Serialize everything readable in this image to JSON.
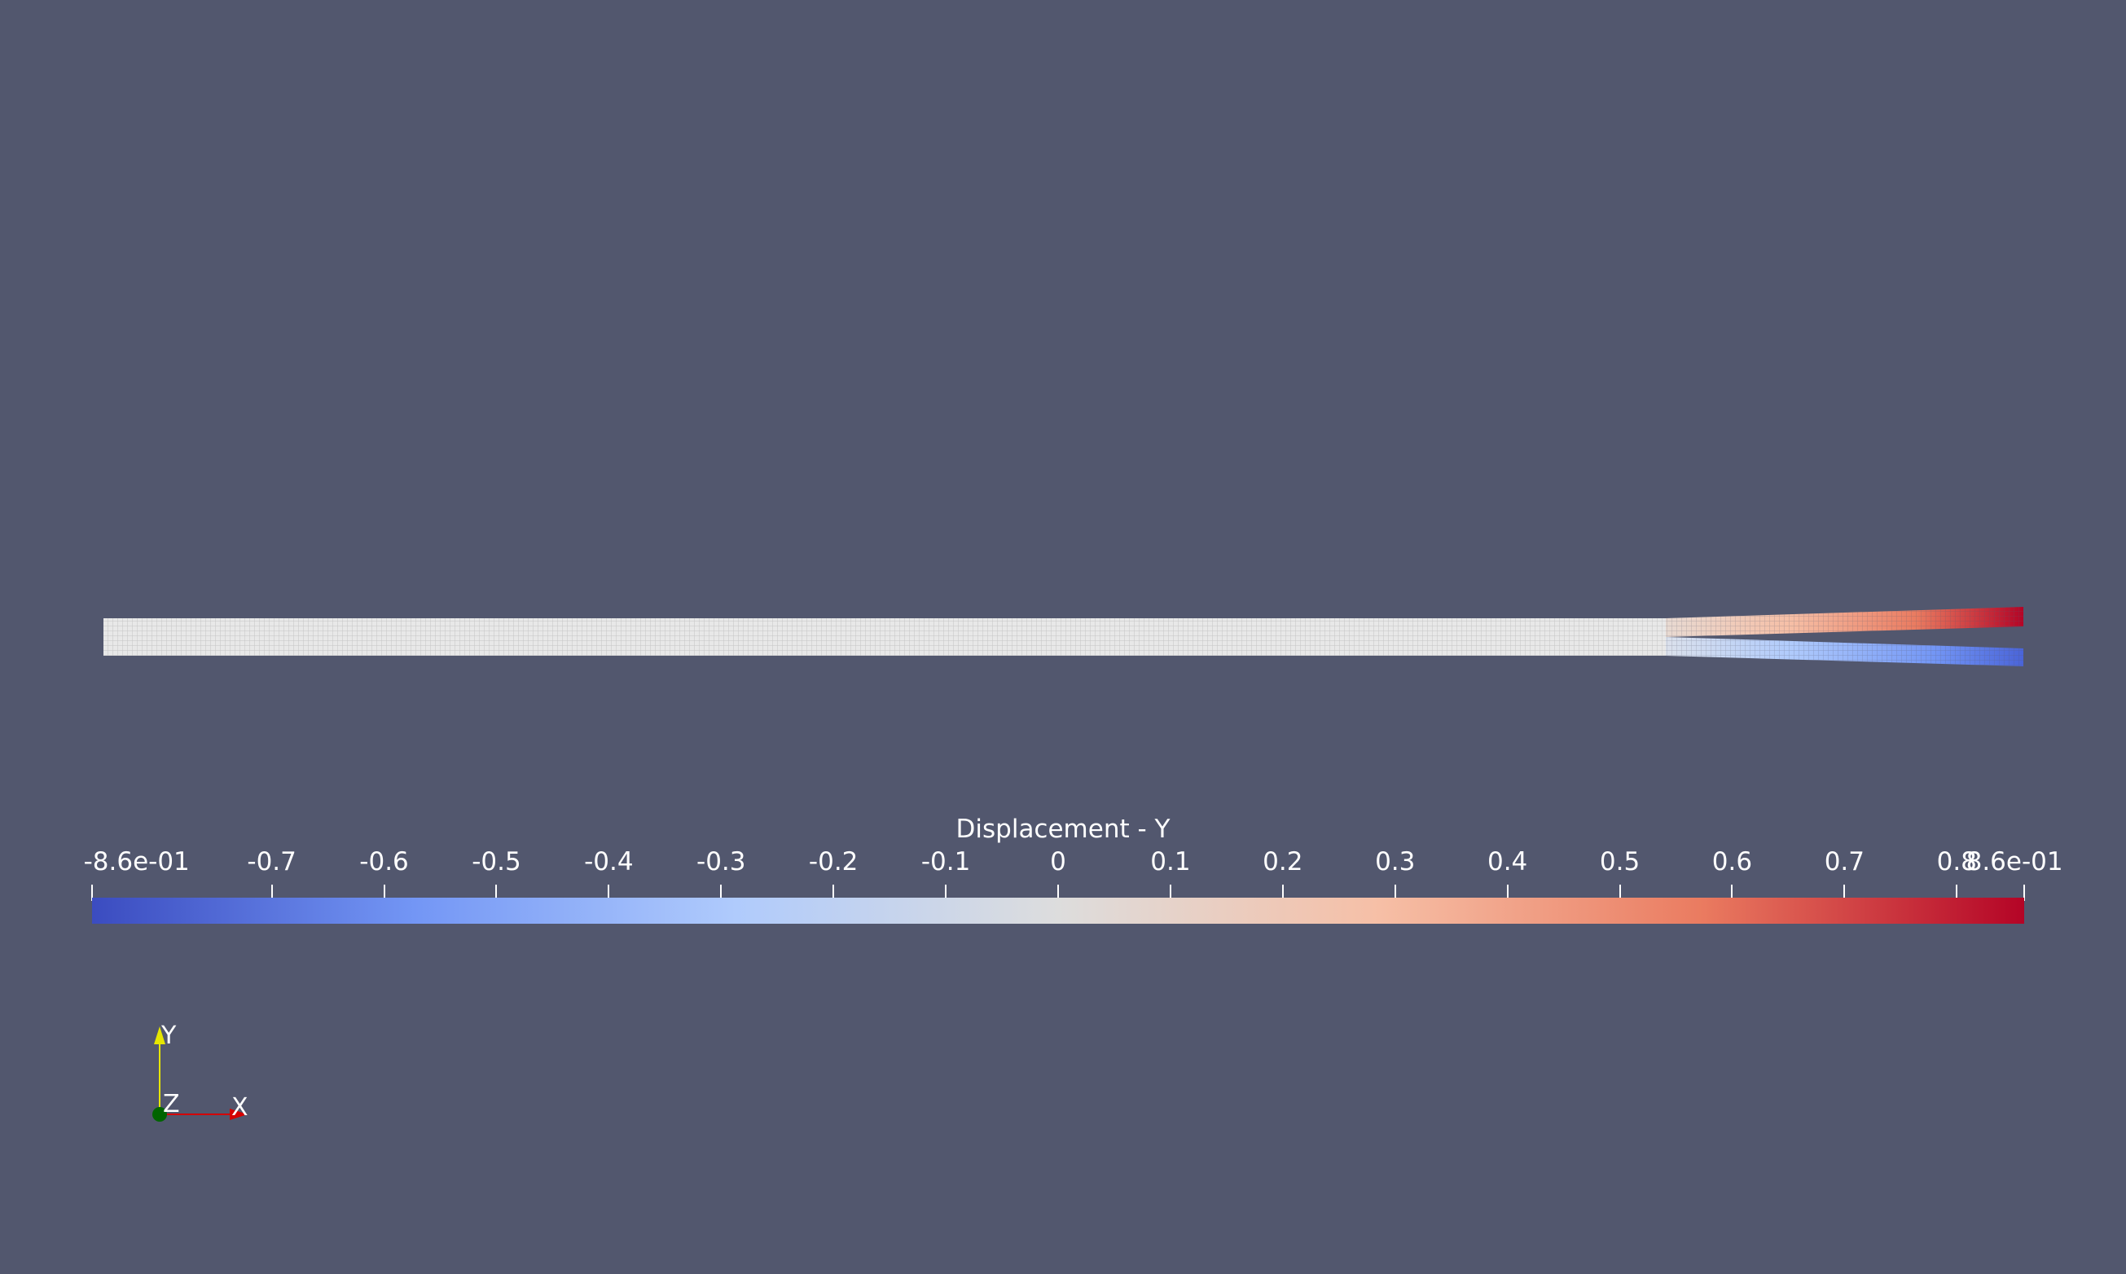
{
  "colorbar": {
    "title": "Displacement - Y",
    "min_label": "-8.6e-01",
    "max_label": "8.6e-01",
    "range": [
      -0.86,
      0.86
    ],
    "ticks": [
      {
        "value": -0.86,
        "label": "-8.6e-01",
        "cls": "end-left"
      },
      {
        "value": -0.7,
        "label": "-0.7"
      },
      {
        "value": -0.6,
        "label": "-0.6"
      },
      {
        "value": -0.5,
        "label": "-0.5"
      },
      {
        "value": -0.4,
        "label": "-0.4"
      },
      {
        "value": -0.3,
        "label": "-0.3"
      },
      {
        "value": -0.2,
        "label": "-0.2"
      },
      {
        "value": -0.1,
        "label": "-0.1"
      },
      {
        "value": 0,
        "label": "0"
      },
      {
        "value": 0.1,
        "label": "0.1"
      },
      {
        "value": 0.2,
        "label": "0.2"
      },
      {
        "value": 0.3,
        "label": "0.3"
      },
      {
        "value": 0.4,
        "label": "0.4"
      },
      {
        "value": 0.5,
        "label": "0.5"
      },
      {
        "value": 0.6,
        "label": "0.6"
      },
      {
        "value": 0.7,
        "label": "0.7"
      },
      {
        "value": 0.8,
        "label": "0.8"
      },
      {
        "value": 0.86,
        "label": "8.6e-01",
        "cls": "end-right"
      }
    ],
    "colormap": [
      "#3b4cc0",
      "#7396f5",
      "#b0cbfc",
      "#dddddd",
      "#f6bfa6",
      "#ea7b60",
      "#b40426"
    ]
  },
  "orientation_axes": {
    "x_label": "X",
    "y_label": "Y",
    "z_label": "Z",
    "x_color": "#d40000",
    "y_color": "#e6e600",
    "z_color": "#006400"
  },
  "scene": {
    "background": "#52576e",
    "mesh_color": "#e6e6e6",
    "mesh_wire_color": "#c8c8c8"
  }
}
